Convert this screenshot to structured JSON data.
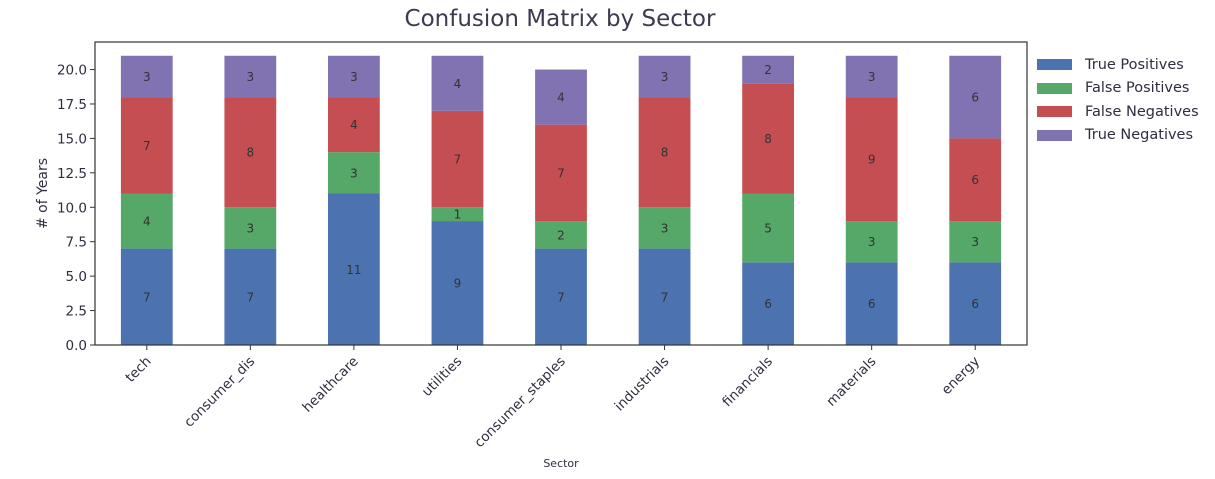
{
  "chart_data": {
    "type": "bar",
    "stacked": true,
    "title": "Confusion Matrix by Sector",
    "xlabel": "Sector",
    "ylabel": "# of Years",
    "ylim": [
      0,
      22
    ],
    "yticks": [
      "0.0",
      "2.5",
      "5.0",
      "7.5",
      "10.0",
      "12.5",
      "15.0",
      "17.5",
      "20.0"
    ],
    "grid": false,
    "legend_position": "outside-top-right",
    "categories": [
      "tech",
      "consumer_dis",
      "healthcare",
      "utilities",
      "consumer_staples",
      "industrials",
      "financials",
      "materials",
      "energy"
    ],
    "series": [
      {
        "name": "True Positives",
        "color": "#4c72b0",
        "values": [
          7,
          7,
          11,
          9,
          7,
          7,
          6,
          6,
          6
        ]
      },
      {
        "name": "False Positives",
        "color": "#55a868",
        "values": [
          4,
          3,
          3,
          1,
          2,
          3,
          5,
          3,
          3
        ]
      },
      {
        "name": "False Negatives",
        "color": "#c44e52",
        "values": [
          7,
          8,
          4,
          7,
          7,
          8,
          8,
          9,
          6
        ]
      },
      {
        "name": "True Negatives",
        "color": "#8172b2",
        "values": [
          3,
          3,
          3,
          4,
          4,
          3,
          2,
          3,
          6
        ]
      }
    ]
  }
}
